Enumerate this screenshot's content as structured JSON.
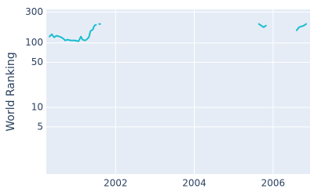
{
  "chart_data": {
    "type": "line",
    "y_label": "World Ranking",
    "x": [
      2000.32,
      2000.38,
      2000.44,
      2000.5,
      2000.58,
      2000.66,
      2000.72,
      2000.78,
      2000.86,
      2000.96,
      2001.06,
      2001.12,
      2001.16,
      2001.22,
      2001.26,
      2001.32,
      2001.36,
      2001.42,
      2001.46,
      2001.5,
      null,
      2001.58,
      null,
      2005.64,
      2005.7,
      2005.76,
      2005.82,
      null,
      2006.6,
      2006.66,
      2006.72,
      2006.78,
      2006.84
    ],
    "series": [
      {
        "color": "#17becf",
        "values": [
          125,
          136,
          122,
          129,
          125,
          118,
          109,
          112,
          109,
          109,
          106,
          125,
          112,
          109,
          112,
          122,
          152,
          161,
          185,
          191,
          null,
          196,
          null,
          196,
          185,
          175,
          185,
          null,
          157,
          175,
          180,
          185,
          196
        ]
      }
    ],
    "xlim": [
      2000.24,
      2006.94
    ],
    "xticks": [
      2002,
      2004,
      2006
    ],
    "ylim": [
      0.93,
      330
    ],
    "yticks": [
      5,
      10,
      50,
      100,
      300
    ],
    "log_y": true,
    "grid": true,
    "background": "#e5ecf6"
  }
}
